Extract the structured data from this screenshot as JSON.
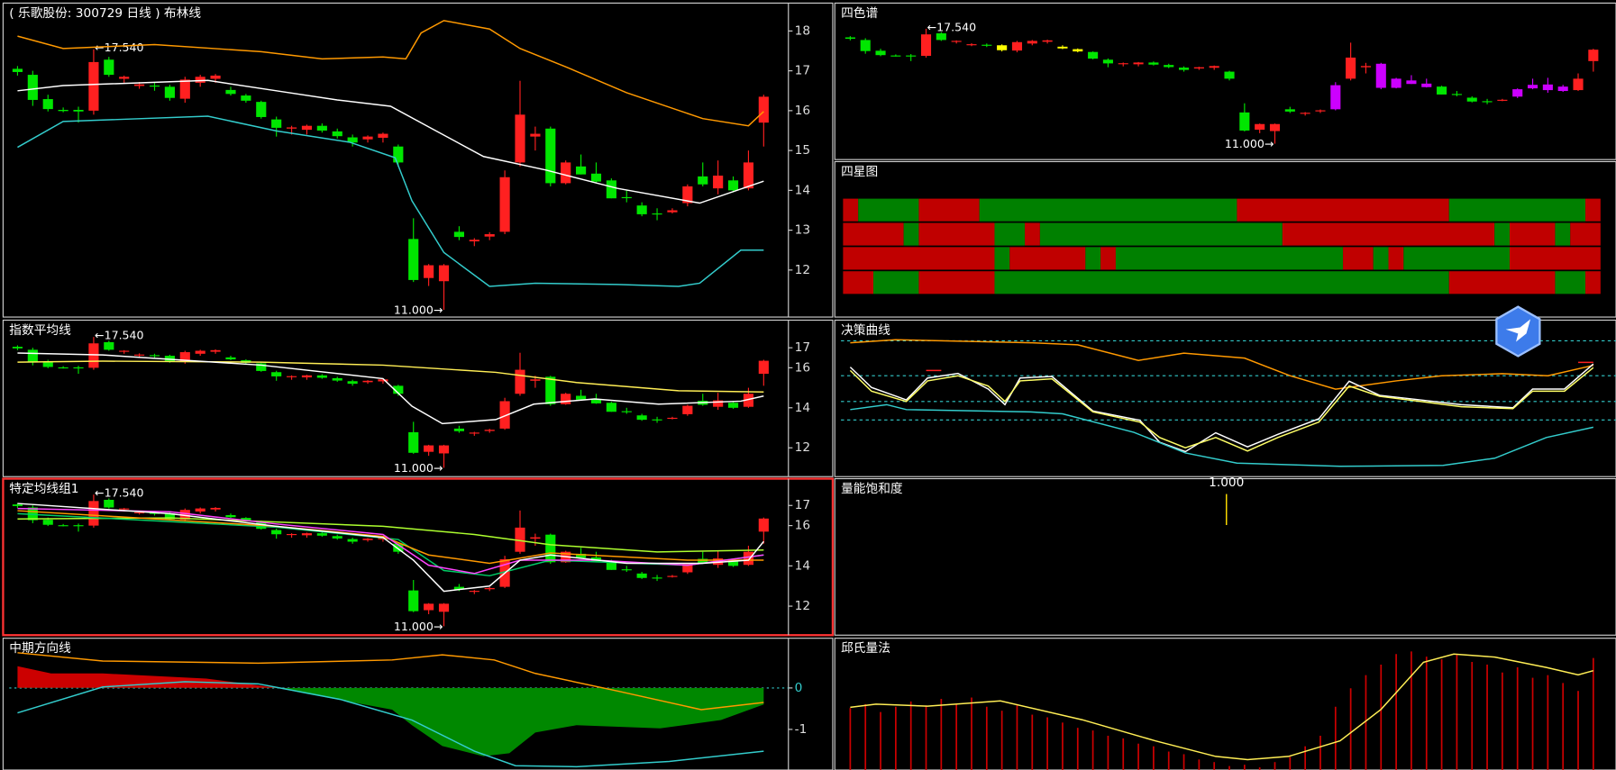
{
  "candles": {
    "up_color": "#ff2020",
    "down_color": "#00e600",
    "open": [
      17.05,
      16.9,
      16.29,
      16.02,
      16.02,
      16.0,
      17.28,
      16.8,
      16.62,
      16.63,
      16.6,
      16.3,
      16.7,
      16.8,
      16.52,
      16.38,
      16.22,
      15.78,
      15.55,
      15.52,
      15.62,
      15.48,
      15.33,
      15.28,
      15.32,
      15.1,
      12.78,
      11.8,
      11.72,
      12.96,
      12.72,
      12.84,
      12.96,
      14.7,
      15.35,
      15.55,
      14.18,
      14.6,
      14.42,
      14.25,
      13.83,
      13.62,
      13.42,
      13.45,
      13.68,
      14.35,
      14.05,
      14.25,
      14.05,
      15.7
    ],
    "high": [
      17.12,
      17.0,
      16.4,
      16.08,
      16.1,
      17.54,
      17.35,
      16.88,
      16.72,
      16.7,
      16.65,
      16.85,
      16.9,
      16.92,
      16.6,
      16.42,
      16.25,
      15.85,
      15.62,
      15.65,
      15.68,
      15.55,
      15.4,
      15.38,
      15.45,
      15.15,
      13.3,
      12.15,
      12.15,
      13.1,
      12.8,
      12.95,
      14.5,
      16.75,
      15.6,
      15.6,
      14.75,
      14.9,
      14.7,
      14.3,
      14.0,
      13.7,
      13.55,
      13.55,
      14.15,
      14.7,
      14.75,
      14.35,
      15.0,
      16.4
    ],
    "low": [
      16.88,
      16.12,
      15.98,
      15.96,
      15.7,
      15.9,
      16.85,
      16.7,
      16.55,
      16.5,
      16.25,
      16.2,
      16.6,
      16.7,
      16.38,
      16.2,
      15.8,
      15.35,
      15.4,
      15.4,
      15.45,
      15.3,
      15.1,
      15.2,
      15.2,
      14.6,
      11.7,
      11.6,
      11.0,
      12.75,
      12.6,
      12.75,
      12.9,
      14.6,
      15.0,
      14.1,
      14.15,
      14.4,
      14.2,
      13.8,
      13.7,
      13.35,
      13.25,
      13.42,
      13.6,
      14.1,
      13.9,
      13.95,
      14.0,
      15.1
    ],
    "close": [
      16.97,
      16.27,
      16.04,
      15.99,
      15.98,
      17.22,
      16.9,
      16.85,
      16.66,
      16.62,
      16.32,
      16.78,
      16.85,
      16.88,
      16.42,
      16.25,
      15.84,
      15.57,
      15.58,
      15.62,
      15.5,
      15.36,
      15.2,
      15.35,
      15.42,
      14.7,
      11.75,
      12.12,
      12.12,
      12.83,
      12.76,
      12.9,
      14.33,
      15.9,
      15.42,
      14.18,
      14.7,
      14.4,
      14.22,
      13.8,
      13.82,
      13.4,
      13.4,
      13.5,
      14.1,
      14.15,
      14.37,
      14.0,
      14.7,
      16.35
    ]
  },
  "chart_data": [
    {
      "type": "candlestick",
      "title": "( 乐歌股份: 300729 日线 )  布林线",
      "ylim": [
        10.82,
        18.7
      ],
      "yticks": [
        12,
        13,
        14,
        15,
        16,
        17,
        18
      ],
      "annotations": [
        {
          "value": 17.54,
          "label": "←17.540"
        },
        {
          "value": 11.0,
          "label": "11.000→"
        }
      ],
      "series": [
        {
          "color": "#ff9900",
          "x": [
            0,
            3,
            9,
            16,
            20,
            24,
            25.5,
            26.5,
            28,
            31,
            33,
            36,
            40,
            45,
            48,
            49
          ],
          "values": [
            17.87,
            17.56,
            17.66,
            17.48,
            17.3,
            17.35,
            17.3,
            17.95,
            18.26,
            18.05,
            17.56,
            17.1,
            16.45,
            15.8,
            15.62,
            15.98
          ]
        },
        {
          "color": "#ffffff",
          "x": [
            0,
            3,
            12.5,
            17,
            21,
            24.5,
            27.2,
            30.6,
            34.7,
            39.4,
            44.8,
            49
          ],
          "values": [
            16.5,
            16.63,
            16.76,
            16.5,
            16.27,
            16.11,
            15.55,
            14.85,
            14.51,
            14.05,
            13.68,
            14.23
          ]
        },
        {
          "color": "#33cccc",
          "x": [
            0,
            3,
            12.5,
            17,
            21.8,
            24.8,
            25.9,
            28,
            31,
            34,
            39.4,
            43.4,
            44.8,
            47.5,
            49
          ],
          "values": [
            15.08,
            15.73,
            15.86,
            15.49,
            15.21,
            14.82,
            13.74,
            12.44,
            11.59,
            11.67,
            11.64,
            11.59,
            11.67,
            12.5,
            12.5
          ]
        }
      ]
    },
    {
      "type": "candlestick",
      "title": "四色谱",
      "ylim": [
        10.1,
        19.0
      ],
      "annotations": [
        {
          "value": 17.54,
          "label": "←17.540"
        },
        {
          "value": 11.0,
          "label": "11.000→"
        }
      ],
      "candle_colors": [
        "#00e600",
        "#00e600",
        "#00e600",
        "#00e600",
        "#00e600",
        "#ff2020",
        "#00e600",
        "#ff2020",
        "#ff2020",
        "#00e600",
        "#ffff00",
        "#ff2020",
        "#ff2020",
        "#ff2020",
        "#ffff00",
        "#ffff00",
        "#00e600",
        "#00e600",
        "#ff2020",
        "#ff2020",
        "#00e600",
        "#00e600",
        "#00e600",
        "#ff2020",
        "#ff2020",
        "#00e600",
        "#00e600",
        "#ff2020",
        "#ff2020",
        "#00e600",
        "#ff2020",
        "#ff2020",
        "#cc00ff",
        "#ff2020",
        "#ff2020",
        "#cc00ff",
        "#cc00ff",
        "#cc00ff",
        "#cc00ff",
        "#00e600",
        "#00e600",
        "#00e600",
        "#00e600",
        "#ff2020",
        "#cc00ff",
        "#cc00ff",
        "#cc00ff",
        "#cc00ff",
        "#ff2020",
        "#ff2020"
      ]
    },
    {
      "type": "stripes",
      "title": "四星图",
      "rows": [
        {
          "colors": [
            "#c00000",
            "#008000",
            "#c00000",
            "#008000",
            "#c00000",
            "#008000",
            "#c00000"
          ],
          "lengths": [
            1,
            4,
            4,
            17,
            14,
            9,
            1
          ]
        },
        {
          "colors": [
            "#c00000",
            "#008000",
            "#c00000",
            "#008000",
            "#c00000",
            "#008000",
            "#c00000",
            "#008000",
            "#c00000",
            "#008000",
            "#c00000"
          ],
          "lengths": [
            4,
            1,
            5,
            2,
            1,
            16,
            14,
            1,
            3,
            1,
            2
          ]
        },
        {
          "colors": [
            "#c00000",
            "#008000",
            "#c00000",
            "#008000",
            "#c00000",
            "#008000",
            "#c00000",
            "#008000",
            "#c00000",
            "#008000",
            "#c00000"
          ],
          "lengths": [
            10,
            1,
            5,
            1,
            1,
            15,
            2,
            1,
            1,
            7,
            6
          ]
        },
        {
          "colors": [
            "#c00000",
            "#008000",
            "#c00000",
            "#008000",
            "#c00000",
            "#008000",
            "#c00000"
          ],
          "lengths": [
            2,
            3,
            5,
            30,
            7,
            2,
            1
          ]
        }
      ]
    },
    {
      "type": "candlestick",
      "title": "指数平均线",
      "ylim": [
        10.56,
        18.38
      ],
      "yticks": [
        12,
        14,
        16,
        17
      ],
      "annotations": [
        {
          "value": 17.54,
          "label": "←17.540"
        },
        {
          "value": 11.0,
          "label": "11.000→"
        }
      ],
      "series": [
        {
          "color": "#ffee55",
          "x": [
            0,
            5.6,
            16,
            24,
            31.4,
            36.7,
            43.4,
            49
          ],
          "values": [
            16.28,
            16.33,
            16.28,
            16.13,
            15.77,
            15.26,
            14.85,
            14.79
          ]
        },
        {
          "color": "#ffffff",
          "x": [
            0,
            5.6,
            16,
            24,
            25.9,
            27.9,
            31.4,
            33.9,
            37.9,
            42.1,
            47.5,
            49
          ],
          "values": [
            16.74,
            16.64,
            16.13,
            15.46,
            14.08,
            13.21,
            13.41,
            14.18,
            14.44,
            14.18,
            14.33,
            14.59
          ]
        }
      ]
    },
    {
      "type": "line",
      "title": "决策曲线",
      "ylim": [
        0,
        100
      ],
      "levels": [
        86.8,
        64.5,
        48.0,
        36.2
      ],
      "level_color": "#33cccc",
      "series": [
        {
          "color": "#ff9900",
          "x": [
            0,
            3,
            12,
            15,
            19,
            22,
            26,
            29,
            32,
            36,
            39,
            43,
            46,
            49
          ],
          "values": [
            85.5,
            87.5,
            85.5,
            84.2,
            74.3,
            78.9,
            75.7,
            64.5,
            55.9,
            61.2,
            64.5,
            65.8,
            64.5,
            71.1
          ]
        },
        {
          "color": "#ffffff",
          "x": [
            0,
            1.4,
            3.7,
            5.1,
            7.1,
            9.1,
            10.2,
            11.2,
            13.3,
            16,
            19.1,
            20.4,
            22.1,
            24.1,
            26.2,
            28.2,
            30.9,
            32.9,
            34.9,
            37.6,
            40.3,
            43.7,
            45,
            47.1,
            49
          ],
          "values": [
            70,
            57,
            49,
            63,
            66,
            56,
            46,
            63,
            64,
            42,
            36,
            22,
            16,
            28,
            19,
            27,
            37,
            61,
            52,
            49,
            46,
            44,
            56,
            56,
            72
          ]
        },
        {
          "color": "#ffff66",
          "x": [
            0,
            1.4,
            3.7,
            5.1,
            7.1,
            9.1,
            10.2,
            11.2,
            13.3,
            16,
            19.1,
            20.4,
            22.1,
            24.1,
            26.2,
            28.2,
            30.9,
            32.9,
            34.9,
            37.6,
            40.3,
            43.7,
            45,
            47.1,
            49
          ],
          "values": [
            67.8,
            54.6,
            48.0,
            61.2,
            64.5,
            57.9,
            48.0,
            61.2,
            62.5,
            41.4,
            34.9,
            25.0,
            18.4,
            25.0,
            16.4,
            25.0,
            34.9,
            57.9,
            51.3,
            48.0,
            44.7,
            43.4,
            54.6,
            54.6,
            69.7
          ]
        },
        {
          "color": "#ff2020",
          "x": [
            5,
            6,
            27,
            48,
            49
          ],
          "values": [
            67.8,
            67.8,
            null,
            73.0,
            73.0
          ]
        },
        {
          "color": "#33cccc",
          "x": [
            0,
            2.4,
            3.7,
            11.9,
            14,
            18.7,
            22.1,
            25.5,
            32.3,
            39.1,
            42.5,
            45.9,
            49
          ],
          "values": [
            42.8,
            46.0,
            42.8,
            41.4,
            40.1,
            28.3,
            15.1,
            8.6,
            6.6,
            7.2,
            11.8,
            25.0,
            31.6
          ]
        }
      ]
    },
    {
      "type": "candlestick",
      "title": "特定均线组1",
      "ylim": [
        10.56,
        18.33
      ],
      "yticks": [
        12,
        14,
        16,
        17
      ],
      "annotations": [
        {
          "value": 17.54,
          "label": "←17.540"
        },
        {
          "value": 11.0,
          "label": "11.000→"
        }
      ],
      "series": [
        {
          "color": "#adff2f",
          "x": [
            0,
            10,
            17,
            24,
            30,
            35,
            42,
            49
          ],
          "values": [
            16.33,
            16.38,
            16.18,
            15.97,
            15.56,
            15.05,
            14.69,
            14.79
          ]
        },
        {
          "color": "#00cc66",
          "x": [
            0,
            17,
            25,
            28,
            31,
            35,
            44,
            49
          ],
          "values": [
            16.59,
            15.92,
            15.31,
            13.77,
            13.51,
            14.28,
            14.03,
            14.54
          ]
        },
        {
          "color": "#ff9900",
          "x": [
            0,
            17,
            24,
            27,
            31,
            35,
            44,
            49
          ],
          "values": [
            16.74,
            15.97,
            15.46,
            14.54,
            14.13,
            14.64,
            14.28,
            14.28
          ]
        },
        {
          "color": "#ff44ff",
          "x": [
            0,
            10,
            17,
            24,
            27,
            30,
            33,
            38,
            44,
            49
          ],
          "values": [
            16.85,
            16.69,
            16.08,
            15.56,
            14.03,
            13.62,
            14.28,
            14.28,
            14.03,
            14.54
          ]
        },
        {
          "color": "#ffffff",
          "x": [
            0,
            10,
            17,
            24,
            26,
            28,
            31,
            33,
            35,
            40,
            45,
            48,
            49
          ],
          "values": [
            17.1,
            16.59,
            15.97,
            15.41,
            14.28,
            12.74,
            13.0,
            14.28,
            14.54,
            14.13,
            14.13,
            14.28,
            15.21
          ]
        }
      ]
    },
    {
      "type": "donut",
      "title": "量能饱和度",
      "values": [
        1.0
      ],
      "value_labels": [
        "1.000"
      ],
      "color": "#ff0000",
      "edge_color": "#ffdd00"
    },
    {
      "type": "area",
      "title": "中期方向线",
      "ylim": [
        -1.98,
        1.2
      ],
      "yticks": [
        0,
        -1
      ],
      "area": {
        "positive_color": "#cc0000",
        "negative_color": "#008800",
        "x": [
          0,
          2.2,
          5.6,
          12.4,
          17.1,
          19.1,
          24.6,
          25.9,
          27.9,
          30.6,
          32.3,
          34,
          36.7,
          42.2,
          46.2,
          49
        ],
        "values": [
          0.525,
          0.35,
          0.35,
          0.225,
          0,
          -0.15,
          -0.525,
          -0.9,
          -1.4,
          -1.65,
          -1.575,
          -1.075,
          -0.9,
          -0.975,
          -0.775,
          -0.4
        ]
      },
      "series": [
        {
          "color": "#ff9900",
          "x": [
            0,
            5.6,
            15.8,
            24.6,
            27.9,
            31.3,
            34,
            39.4,
            44.9,
            49
          ],
          "values": [
            0.85,
            0.65,
            0.6,
            0.675,
            0.8,
            0.675,
            0.35,
            -0.075,
            -0.525,
            -0.35
          ]
        },
        {
          "color": "#33cccc",
          "x": [
            0,
            5.6,
            11,
            15.8,
            21.2,
            25.9,
            30,
            32.7,
            36.7,
            42.8,
            49
          ],
          "values": [
            -0.6,
            0.025,
            0.15,
            0.1,
            -0.275,
            -0.775,
            -1.525,
            -1.875,
            -1.9,
            -1.775,
            -1.525
          ]
        }
      ]
    },
    {
      "type": "bar",
      "title": "邱氏量法",
      "ylim": [
        0,
        100
      ],
      "color": "#cc0000",
      "values": [
        47,
        50,
        44,
        48,
        52,
        49,
        54,
        50,
        55,
        48,
        45,
        50,
        42,
        40,
        36,
        32,
        30,
        26,
        24,
        20,
        18,
        14,
        12,
        8,
        6,
        3,
        4,
        2,
        6,
        10,
        18,
        26,
        48,
        62,
        72,
        80,
        88,
        90,
        86,
        84,
        88,
        82,
        80,
        74,
        78,
        70,
        72,
        66,
        60,
        85
      ],
      "series": [
        {
          "color": "#ffee55",
          "x": [
            0,
            1.7,
            5.1,
            9.9,
            15.3,
            20.1,
            24.1,
            26.2,
            28.9,
            32.3,
            35,
            37.8,
            39.8,
            42.5,
            45.9,
            48,
            49
          ],
          "values": [
            47.6,
            50,
            48.4,
            52.4,
            38.1,
            22.2,
            10.3,
            7.9,
            10.3,
            22.2,
            46,
            81.7,
            88,
            85.7,
            77.8,
            72.2,
            75.4
          ]
        }
      ]
    }
  ]
}
